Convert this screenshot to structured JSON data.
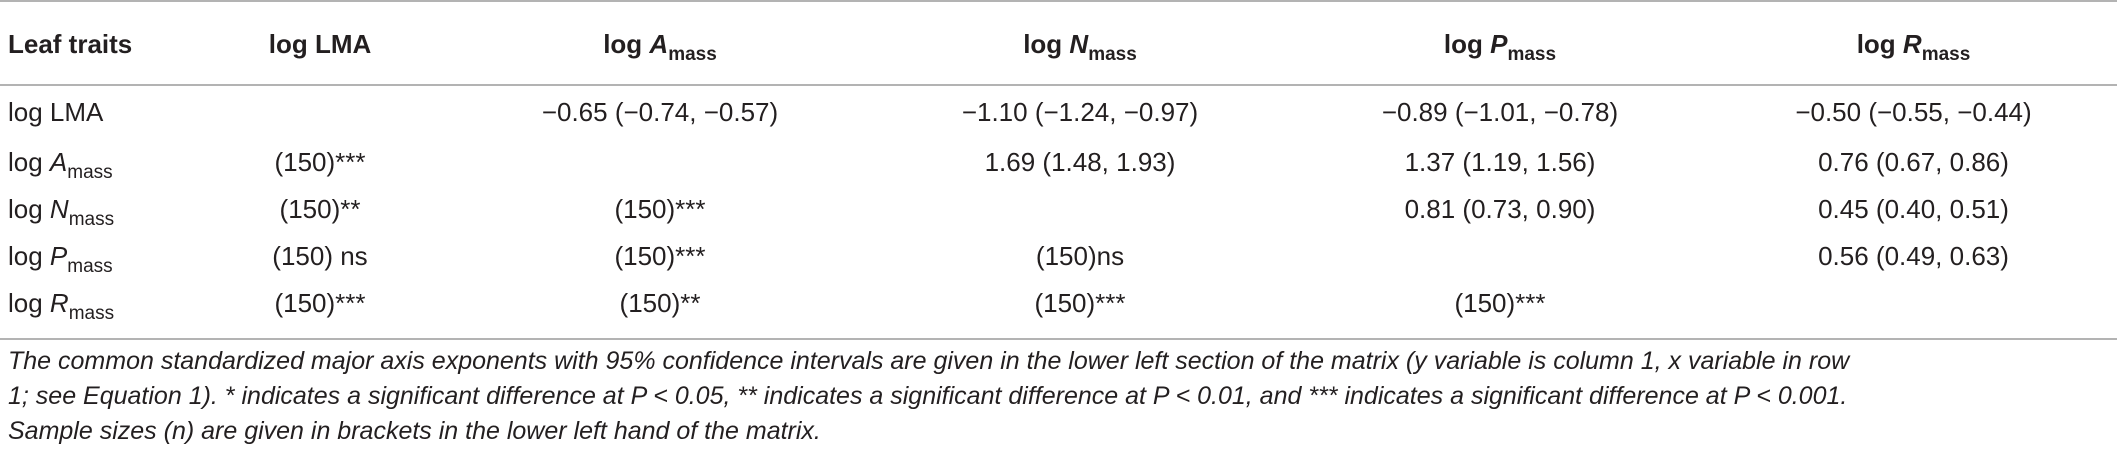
{
  "table": {
    "corner_header": "Leaf traits",
    "traits": [
      {
        "prefix": "log ",
        "italic": "",
        "main": "LMA",
        "sub": ""
      },
      {
        "prefix": "log ",
        "italic": "A",
        "main": "",
        "sub": "mass"
      },
      {
        "prefix": "log ",
        "italic": "N",
        "main": "",
        "sub": "mass"
      },
      {
        "prefix": "log ",
        "italic": "P",
        "main": "",
        "sub": "mass"
      },
      {
        "prefix": "log ",
        "italic": "R",
        "main": "",
        "sub": "mass"
      }
    ],
    "rows": [
      [
        "",
        "−0.65 (−0.74, −0.57)",
        "−1.10 (−1.24, −0.97)",
        "−0.89 (−1.01, −0.78)",
        "−0.50 (−0.55, −0.44)"
      ],
      [
        "(150)***",
        "",
        "1.69 (1.48, 1.93)",
        "1.37 (1.19, 1.56)",
        "0.76 (0.67, 0.86)"
      ],
      [
        "(150)**",
        "(150)***",
        "",
        "0.81 (0.73, 0.90)",
        "0.45 (0.40, 0.51)"
      ],
      [
        "(150) ns",
        "(150)***",
        "(150)ns",
        "",
        "0.56 (0.49, 0.63)"
      ],
      [
        "(150)***",
        "(150)**",
        "(150)***",
        "(150)***",
        ""
      ]
    ]
  },
  "footnote": {
    "line1": "The common standardized major axis exponents with 95% confidence intervals are given in the lower left section of the matrix (y variable is column 1, x variable in row",
    "line2": "1; see Equation 1). * indicates a significant difference at P < 0.05, ** indicates a significant difference at P < 0.01, and *** indicates a significant difference at P < 0.001.",
    "line3": "Sample sizes (n) are given in brackets in the lower left hand of the matrix."
  }
}
